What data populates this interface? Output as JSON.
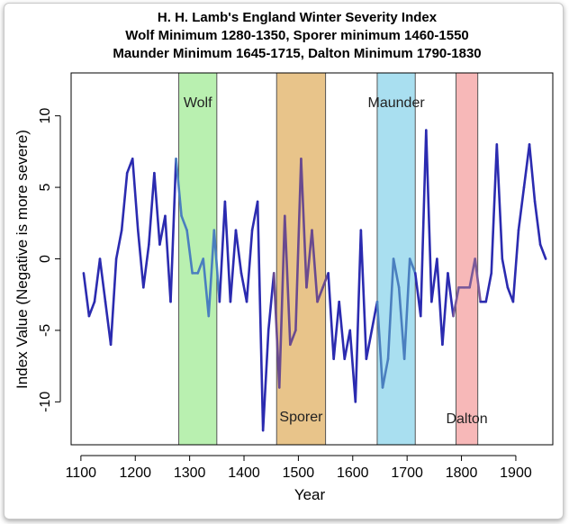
{
  "chart_data": {
    "type": "line",
    "title_lines": [
      "H. H. Lamb's England Winter Severity Index",
      "Wolf Minimum 1280-1350, Sporer minimum 1460-1550",
      "Maunder Minimum 1645-1715, Dalton Minimum 1790-1830"
    ],
    "xlabel": "Year",
    "ylabel": "Index Value (Negative is more severe)",
    "xlim": [
      1082,
      1968
    ],
    "ylim": [
      -13,
      13
    ],
    "xticks": [
      1100,
      1200,
      1300,
      1400,
      1500,
      1600,
      1700,
      1800,
      1900
    ],
    "yticks": [
      -10,
      -5,
      0,
      5,
      10
    ],
    "series_color": "#2b2bb0",
    "series": [
      {
        "name": "Winter Severity Index",
        "x": [
          1105,
          1115,
          1125,
          1135,
          1145,
          1155,
          1165,
          1175,
          1185,
          1195,
          1205,
          1215,
          1225,
          1235,
          1245,
          1255,
          1265,
          1275,
          1285,
          1295,
          1305,
          1315,
          1325,
          1335,
          1345,
          1355,
          1365,
          1375,
          1385,
          1395,
          1405,
          1415,
          1425,
          1435,
          1445,
          1455,
          1465,
          1475,
          1485,
          1495,
          1505,
          1515,
          1525,
          1535,
          1545,
          1555,
          1565,
          1575,
          1585,
          1595,
          1605,
          1615,
          1625,
          1635,
          1645,
          1655,
          1665,
          1675,
          1685,
          1695,
          1705,
          1715,
          1725,
          1735,
          1745,
          1755,
          1765,
          1775,
          1785,
          1795,
          1805,
          1815,
          1825,
          1835,
          1845,
          1855,
          1865,
          1875,
          1885,
          1895,
          1905,
          1915,
          1925,
          1935,
          1945,
          1955
        ],
        "y": [
          -1,
          -4,
          -3,
          0,
          -3,
          -6,
          0,
          2,
          6,
          7,
          2,
          -2,
          1,
          6,
          1,
          3,
          -3,
          7,
          3,
          2,
          -1,
          -1,
          0,
          -4,
          2,
          -3,
          4,
          -3,
          2,
          -1,
          -3,
          2,
          4,
          -12,
          -5,
          -1,
          -9,
          3,
          -6,
          -5,
          7,
          -2,
          2,
          -3,
          -2,
          -1,
          -7,
          -3,
          -7,
          -5,
          -10,
          2,
          -7,
          -5,
          -3,
          -9,
          -7,
          0,
          -2,
          -7,
          0,
          -1,
          -4,
          9,
          -3,
          0,
          -6,
          -1,
          -4,
          -2,
          -2,
          -2,
          0,
          -3,
          -3,
          -1,
          8,
          0,
          -2,
          -3,
          2,
          5,
          8,
          4,
          1,
          0
        ]
      }
    ],
    "periods": [
      {
        "name": "Wolf",
        "start": 1280,
        "end": 1350,
        "color": "#b9f0b0"
      },
      {
        "name": "Sporer",
        "start": 1460,
        "end": 1550,
        "color": "#e8c48a"
      },
      {
        "name": "Maunder",
        "start": 1645,
        "end": 1715,
        "color": "#a9dff0"
      },
      {
        "name": "Dalton",
        "start": 1790,
        "end": 1830,
        "color": "#f7b8b8"
      }
    ],
    "annotations": [
      {
        "text": "Wolf",
        "x": 1315,
        "y": 11
      },
      {
        "text": "Sporer",
        "x": 1505,
        "y": -11
      },
      {
        "text": "Maunder",
        "x": 1680,
        "y": 11
      },
      {
        "text": "Dalton",
        "x": 1810,
        "y": -11.1
      }
    ]
  }
}
